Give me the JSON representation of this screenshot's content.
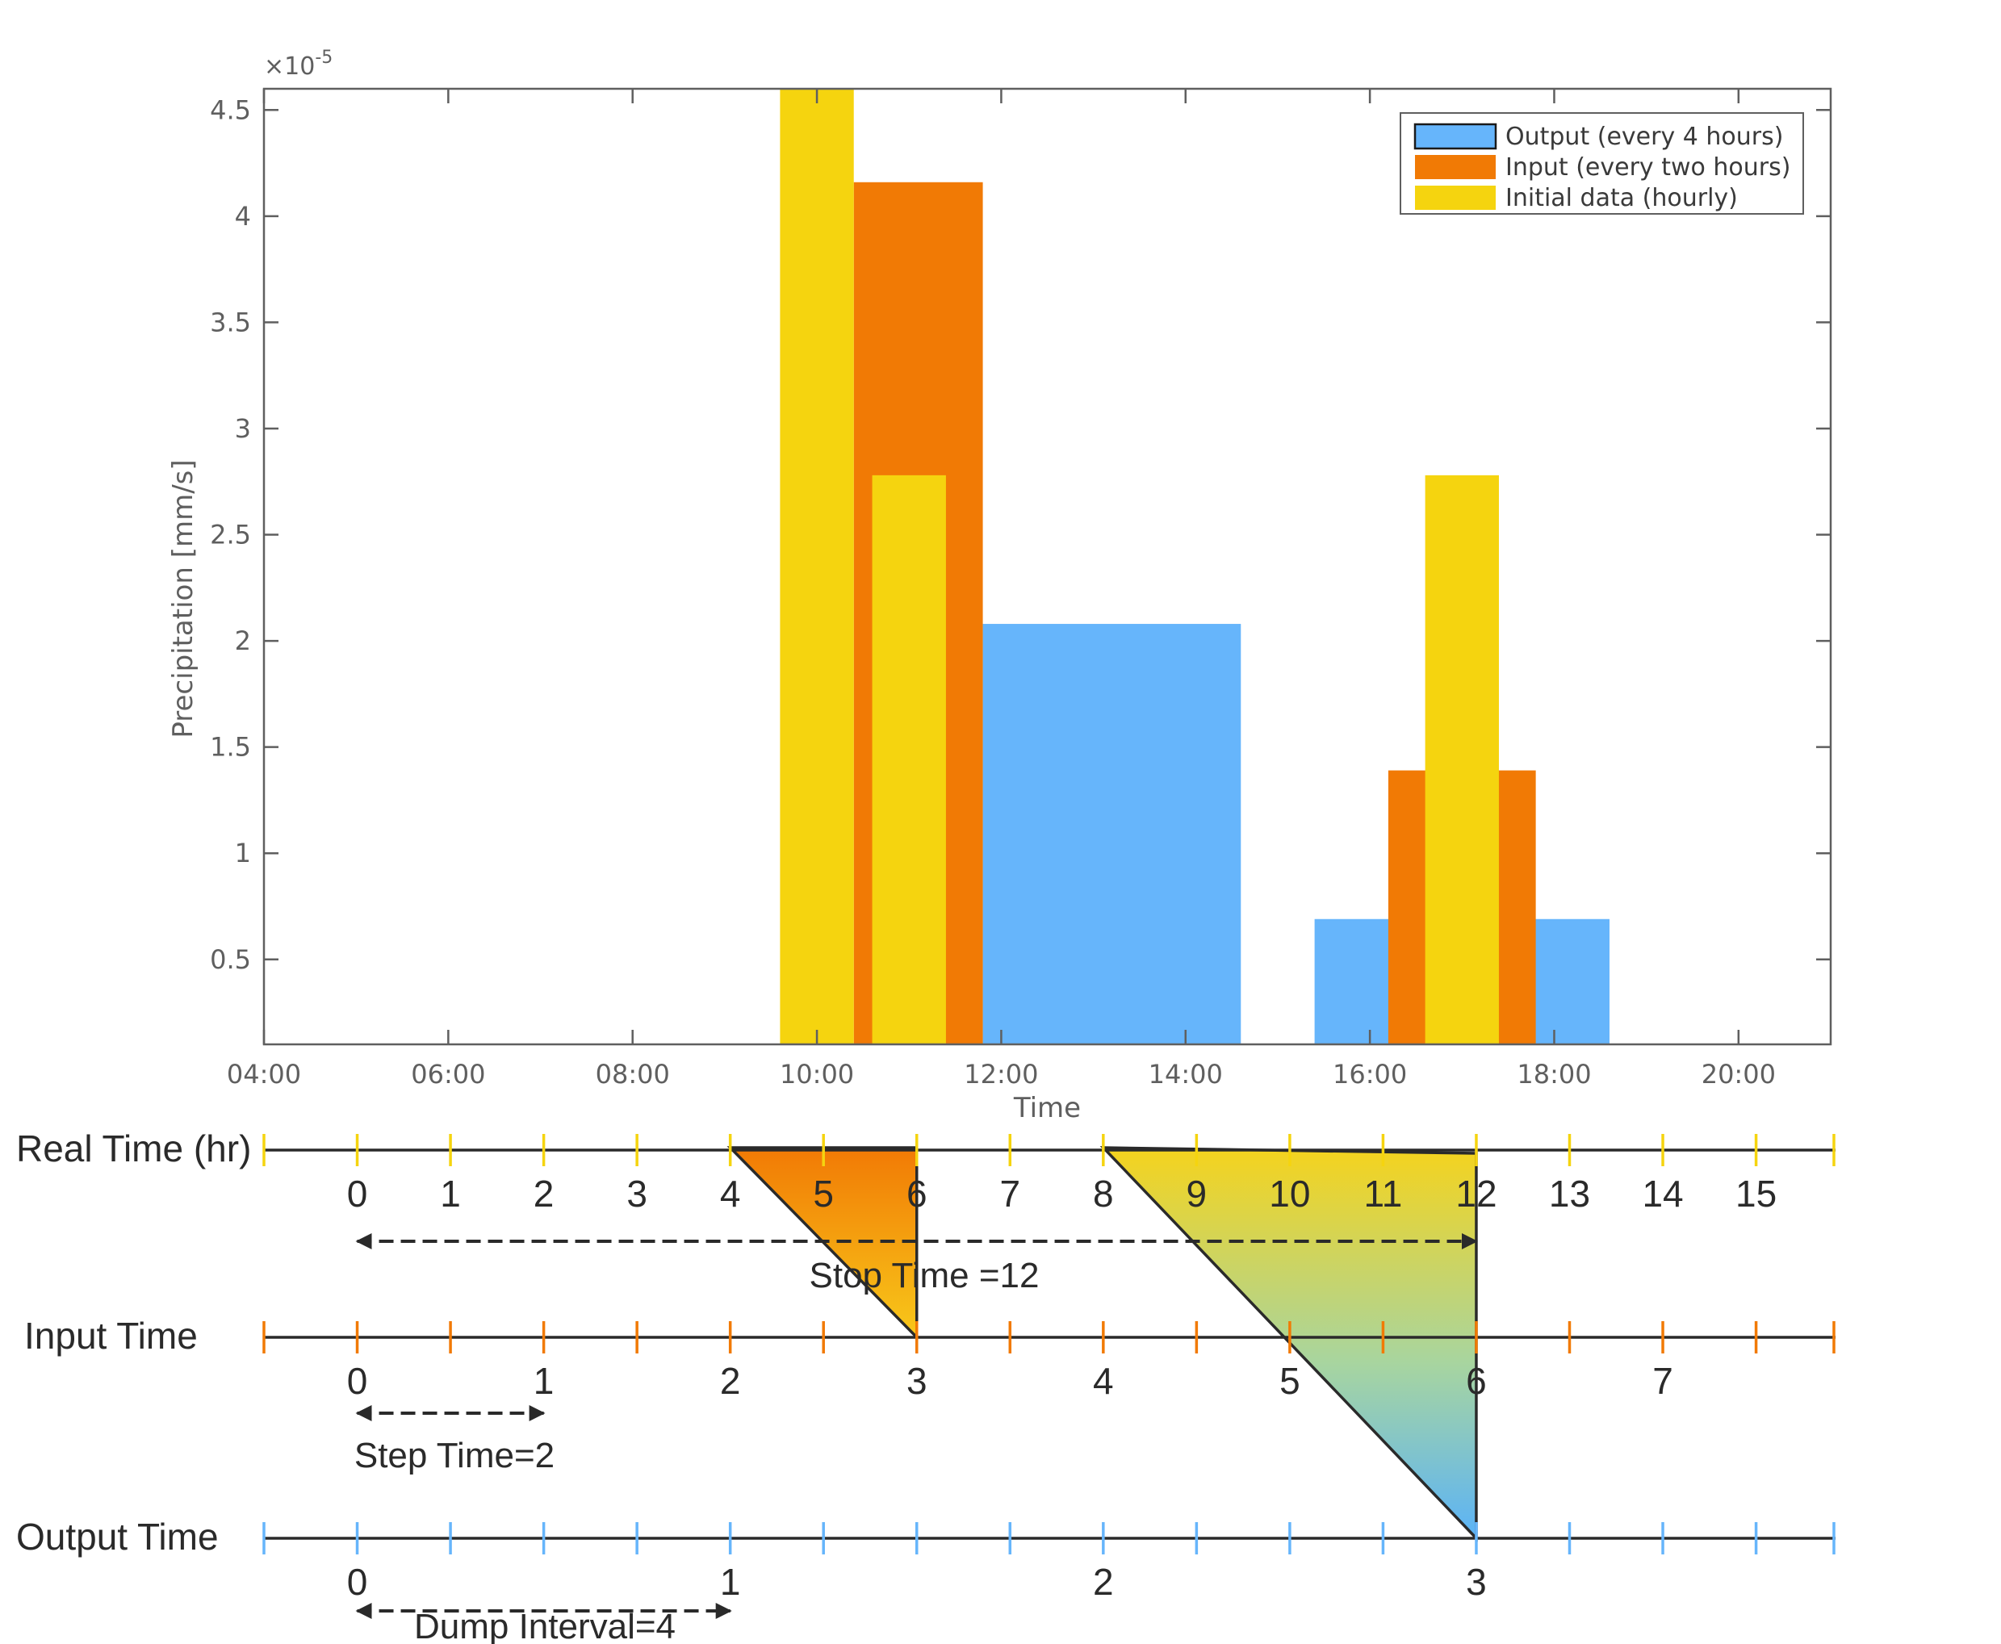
{
  "chart_data": {
    "type": "bar",
    "title": "",
    "xlabel": "Time",
    "ylabel": "Precipitation [mm/s]",
    "y_exponent_label": "×10",
    "y_exponent_power": "-5",
    "xlim_hours": [
      4,
      21
    ],
    "ylim": [
      0.1,
      4.6
    ],
    "x_tick_labels": [
      "04:00",
      "06:00",
      "08:00",
      "10:00",
      "12:00",
      "14:00",
      "16:00",
      "18:00",
      "20:00"
    ],
    "x_tick_hours": [
      4,
      6,
      8,
      10,
      12,
      14,
      16,
      18,
      20
    ],
    "y_ticks": [
      0.5,
      1,
      1.5,
      2,
      2.5,
      3,
      3.5,
      4,
      4.5
    ],
    "y_tick_labels": [
      "0.5",
      "1",
      "1.5",
      "2",
      "2.5",
      "3",
      "3.5",
      "4",
      "4.5"
    ],
    "legend_position": "top-right",
    "series": [
      {
        "name": "Output (every 4 hours)",
        "color": "#66b5fb",
        "bars": [
          {
            "start": 11.8,
            "end": 14.6,
            "value": 2.08
          },
          {
            "start": 15.4,
            "end": 18.6,
            "value": 0.69
          }
        ]
      },
      {
        "name": "Input (every two hours)",
        "color": "#f17a05",
        "bars": [
          {
            "start": 10.4,
            "end": 11.8,
            "value": 4.16
          },
          {
            "start": 16.2,
            "end": 17.8,
            "value": 1.39
          }
        ]
      },
      {
        "name": "Initial data (hourly)",
        "color": "#f5d40f",
        "bars": [
          {
            "start": 9.6,
            "end": 10.4,
            "value": 4.6
          },
          {
            "start": 10.6,
            "end": 11.4,
            "value": 2.78
          },
          {
            "start": 16.6,
            "end": 17.4,
            "value": 2.78
          }
        ]
      }
    ]
  },
  "timelines": [
    {
      "id": "real",
      "label": "Real Time (hr)",
      "color": "#f5d40f",
      "tick_labels": [
        "0",
        "1",
        "2",
        "3",
        "4",
        "5",
        "6",
        "7",
        "8",
        "9",
        "10",
        "11",
        "12",
        "13",
        "14",
        "15"
      ]
    },
    {
      "id": "input",
      "label": "Input Time",
      "color": "#f17a05",
      "tick_labels": [
        "0",
        "1",
        "2",
        "3",
        "4",
        "5",
        "6",
        "7"
      ]
    },
    {
      "id": "output",
      "label": "Output Time",
      "color": "#66b5fb",
      "tick_labels": [
        "0",
        "1",
        "2",
        "3"
      ]
    }
  ],
  "annotations": {
    "stop_time": "Stop Time =12",
    "step_time": "Step Time=2",
    "dump_interval": "Dump Interval=4"
  },
  "colors": {
    "axis": "#5f5f5f",
    "output": "#66b5fb",
    "input": "#f17a05",
    "initial": "#f5d40f",
    "line": "#2a2a2a"
  }
}
